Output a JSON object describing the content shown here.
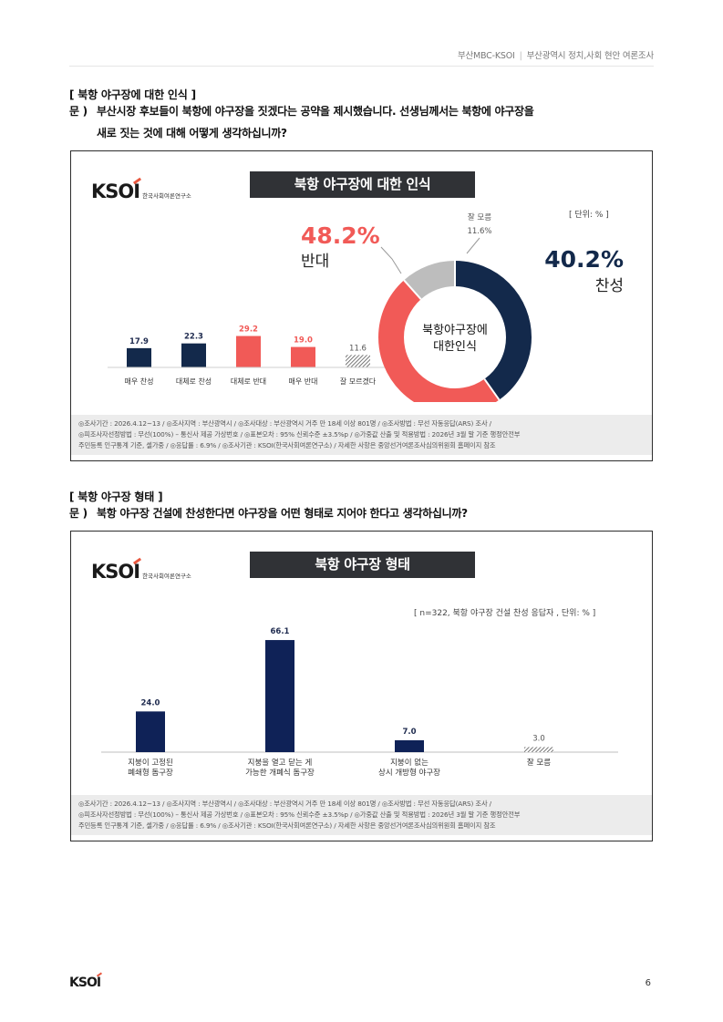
{
  "header": {
    "source": "부산MBC-KSOI",
    "title": "부산광역시 정치,사회 현안 여론조사"
  },
  "section1": {
    "title": "[ 북항 야구장에 대한 인식 ]",
    "q_mark": "문 )",
    "question_line1": "부산시장 후보들이 북항에 야구장을 짓겠다는 공약을 제시했습니다. 선생님께서는 북항에 야구장을",
    "question_line2": "새로 짓는 것에 대해 어떻게 생각하십니까?"
  },
  "section2": {
    "title": "[ 북항 야구장 형태 ]",
    "q_mark": "문 )",
    "question_line1": "북항 야구장 건설에 찬성한다면 야구장을 어떤 형태로 지어야 한다고 생각하십니까?"
  },
  "logo": {
    "mark": "KSOI",
    "sub": "한국사회여론연구소"
  },
  "chart_data": [
    {
      "type": "bar",
      "title": "북항 야구장에 대한 인식",
      "unit_label": "[ 단위: % ]",
      "categories": [
        "매우 찬성",
        "대체로 찬성",
        "대체로 반대",
        "매우 반대",
        "잘 모르겠다"
      ],
      "values": [
        17.9,
        22.3,
        29.2,
        19.0,
        11.6
      ],
      "value_labels": [
        "17.9",
        "22.3",
        "29.2",
        "19.0",
        "11.6"
      ],
      "colors": [
        "#13294b",
        "#13294b",
        "#f15a57",
        "#f15a57",
        "hatch"
      ]
    },
    {
      "type": "pie",
      "donut_center": [
        "북항야구장에",
        "대한인식"
      ],
      "slices": [
        {
          "label": "찬성",
          "value": 40.2,
          "value_label": "40.2%",
          "color": "#13294b"
        },
        {
          "label": "반대",
          "value": 48.2,
          "value_label": "48.2%",
          "color": "#f15a57"
        },
        {
          "label": "잘 모름",
          "value": 11.6,
          "value_label": "11.6%",
          "color": "#bdbdbd"
        }
      ]
    },
    {
      "type": "bar",
      "title": "북항 야구장 형태",
      "unit_label": "[ n=322, 북항 야구장 건설 찬성 응답자 , 단위: % ]",
      "categories": [
        [
          "지붕이 고정된",
          "폐쇄형 돔구장"
        ],
        [
          "지붕을 열고 닫는 게",
          "가능한 개폐식 돔구장"
        ],
        [
          "지붕이 없는",
          "상시 개방형 야구장"
        ],
        [
          "잘 모름"
        ]
      ],
      "values": [
        24.0,
        66.1,
        7.0,
        3.0
      ],
      "value_labels": [
        "24.0",
        "66.1",
        "7.0",
        "3.0"
      ],
      "colors": [
        "#0f2257",
        "#0f2257",
        "#0f2257",
        "hatch"
      ]
    }
  ],
  "footnote": {
    "line1": "◎조사기간 : 2026.4.12~13 / ◎조사지역 : 부산광역시 / ◎조사대상 : 부산광역시 거주 만 18세 이상 801명 / ◎조사방법 : 무선 자동응답(ARS) 조사 /",
    "line2": "◎피조사자선정방법 : 무선(100%) – 통신사 제공 가상번호 / ◎표본오차 : 95% 신뢰수준 ±3.5%p / ◎가중값 산출 및 적용방법 : 2026년 3월 말 기준 행정안전부",
    "line3": "주민등록 인구통계 기준, 셀가중 / ◎응답률 : 6.9% / ◎조사기관 : KSOI(한국사회여론연구소) / 자세한 사항은 중앙선거여론조사심의위원회 홈페이지 참조"
  },
  "page_number": "6"
}
